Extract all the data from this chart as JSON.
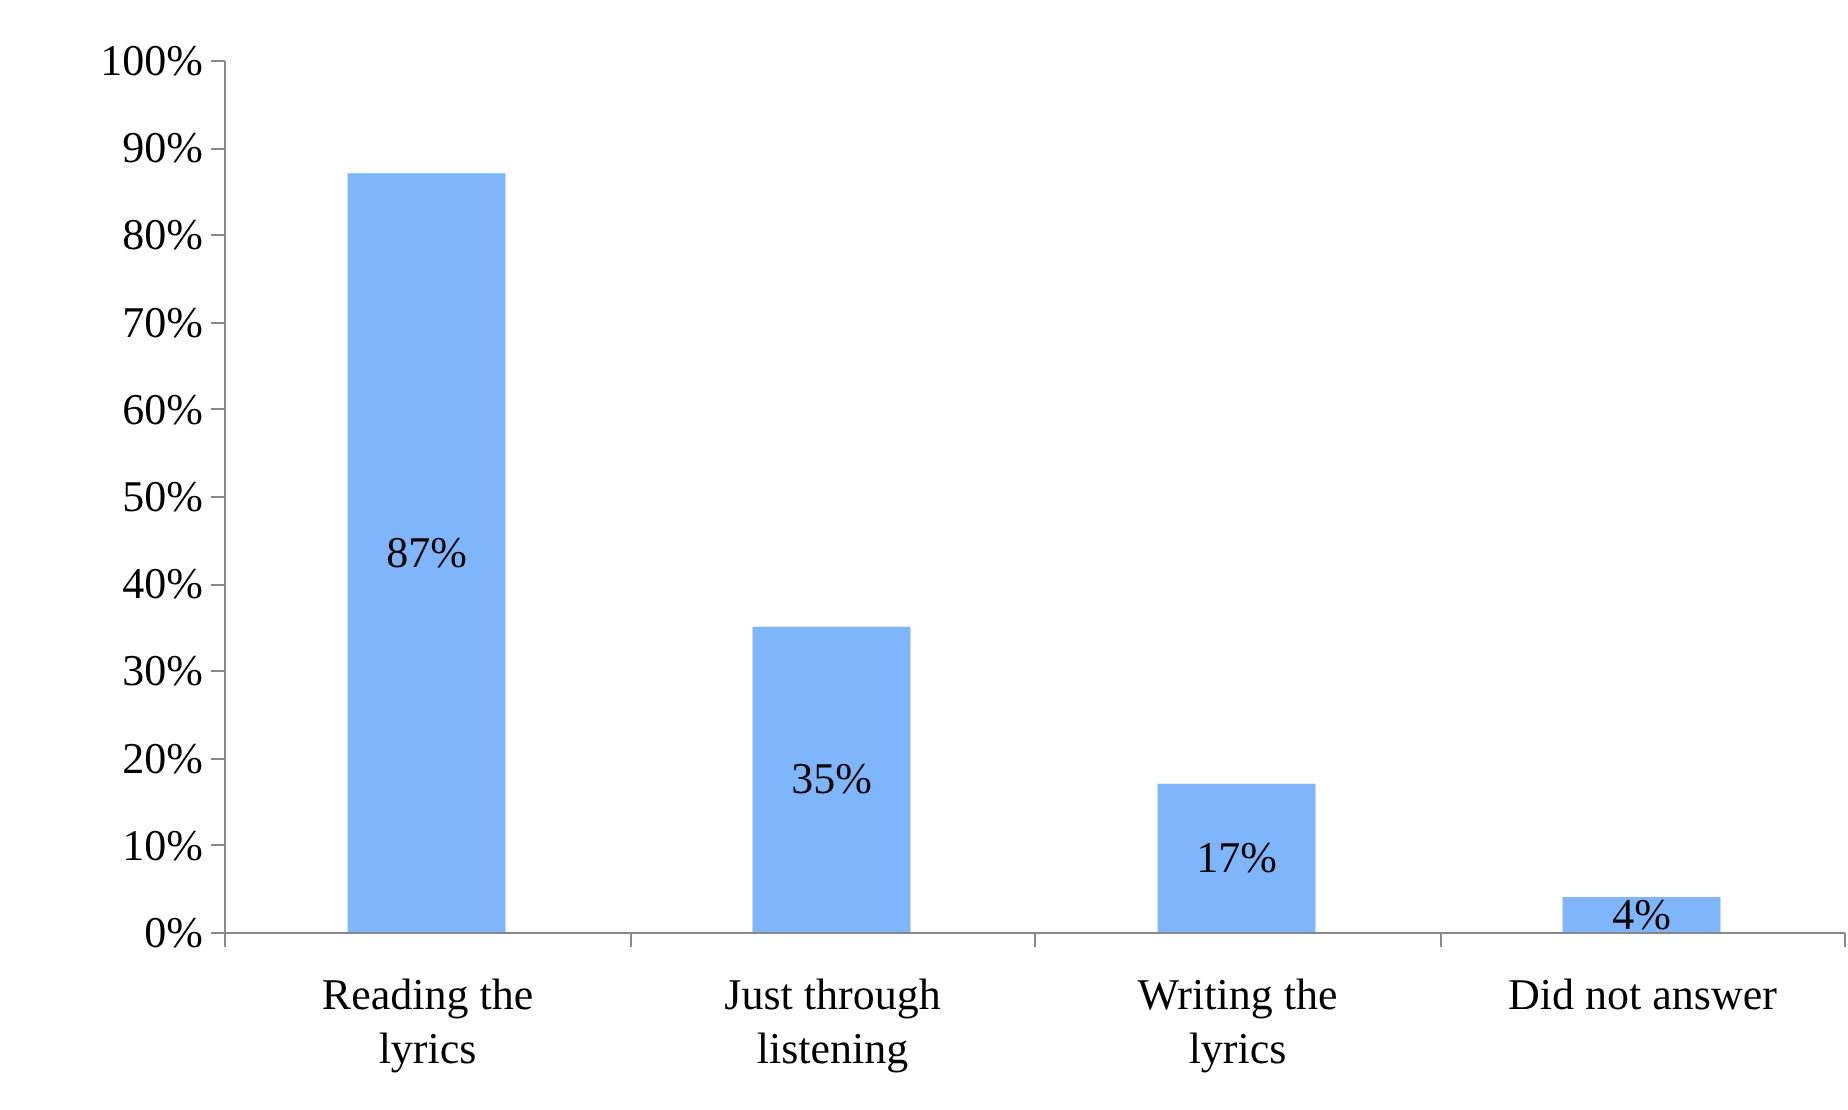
{
  "chart_data": {
    "type": "bar",
    "categories": [
      "Reading the lyrics",
      "Just through listening",
      "Writing the lyrics",
      "Did not answer"
    ],
    "values": [
      87,
      35,
      17,
      4
    ],
    "value_labels": [
      "87%",
      "35%",
      "17%",
      "4%"
    ],
    "color": "#7fb6fb",
    "ylim": [
      0,
      100
    ],
    "yticks": [
      {
        "value": 0,
        "label": "0%"
      },
      {
        "value": 10,
        "label": "10%"
      },
      {
        "value": 20,
        "label": "20%"
      },
      {
        "value": 30,
        "label": "30%"
      },
      {
        "value": 40,
        "label": "40%"
      },
      {
        "value": 50,
        "label": "50%"
      },
      {
        "value": 60,
        "label": "60%"
      },
      {
        "value": 70,
        "label": "70%"
      },
      {
        "value": 80,
        "label": "80%"
      },
      {
        "value": 90,
        "label": "90%"
      },
      {
        "value": 100,
        "label": "100%"
      }
    ],
    "grid": false
  }
}
